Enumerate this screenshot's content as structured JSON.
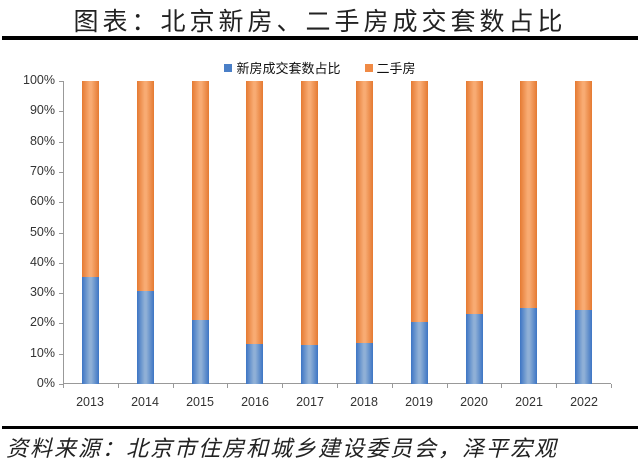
{
  "header": {
    "title": "图表：北京新房、二手房成交套数占比"
  },
  "footer": {
    "source": "资料来源：北京市住房和城乡建设委员会，泽平宏观"
  },
  "legend": [
    {
      "label": "新房成交套数占比",
      "color": "#4a7fc7"
    },
    {
      "label": "二手房",
      "color": "#f08a45"
    }
  ],
  "yaxis": {
    "ticks": [
      "0%",
      "10%",
      "20%",
      "30%",
      "40%",
      "50%",
      "60%",
      "70%",
      "80%",
      "90%",
      "100%"
    ]
  },
  "xaxis": {
    "ticks": [
      "2013",
      "2014",
      "2015",
      "2016",
      "2017",
      "2018",
      "2019",
      "2020",
      "2021",
      "2022"
    ]
  },
  "chart_data": {
    "type": "bar",
    "stacked": true,
    "title": "图表：北京新房、二手房成交套数占比",
    "xlabel": "",
    "ylabel": "",
    "ylim": [
      0,
      100
    ],
    "y_format": "percent",
    "grid": false,
    "legend_position": "top",
    "categories": [
      "2013",
      "2014",
      "2015",
      "2016",
      "2017",
      "2018",
      "2019",
      "2020",
      "2021",
      "2022"
    ],
    "series": [
      {
        "name": "新房成交套数占比",
        "color": "#4a7fc7",
        "values": [
          35.3,
          30.7,
          21.1,
          13.3,
          13.0,
          13.6,
          20.5,
          23.0,
          25.2,
          24.4
        ]
      },
      {
        "name": "二手房",
        "color": "#f08a45",
        "values": [
          64.7,
          69.3,
          78.9,
          86.7,
          87.0,
          86.4,
          79.5,
          77.0,
          74.8,
          75.6
        ]
      }
    ],
    "source": "资料来源：北京市住房和城乡建设委员会，泽平宏观"
  }
}
